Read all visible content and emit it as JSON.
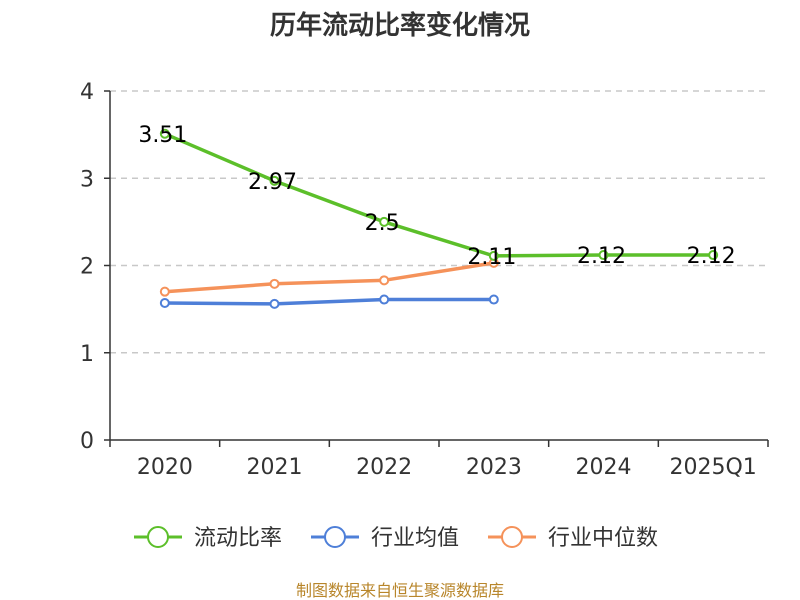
{
  "chart_data": {
    "type": "line",
    "title": "历年流动比率变化情况",
    "categories": [
      "2020",
      "2021",
      "2022",
      "2023",
      "2024",
      "2025Q1"
    ],
    "ylim": [
      0,
      4
    ],
    "yticks": [
      "0",
      "1",
      "2",
      "3",
      "4"
    ],
    "grid": true,
    "legend_position": "bottom",
    "series": [
      {
        "name": "流动比率",
        "color": "#5cbf2a",
        "values": [
          3.51,
          2.97,
          2.5,
          2.11,
          2.12,
          2.12
        ],
        "labels": [
          "3.51",
          "2.97",
          "2.5",
          "2.11",
          "2.12",
          "2.12"
        ]
      },
      {
        "name": "行业均值",
        "color": "#4e7fd8",
        "values": [
          1.57,
          1.56,
          1.61,
          1.61,
          null,
          null
        ]
      },
      {
        "name": "行业中位数",
        "color": "#f5925a",
        "values": [
          1.7,
          1.79,
          1.83,
          2.03,
          null,
          null
        ]
      }
    ],
    "source": "制图数据来自恒生聚源数据库"
  }
}
